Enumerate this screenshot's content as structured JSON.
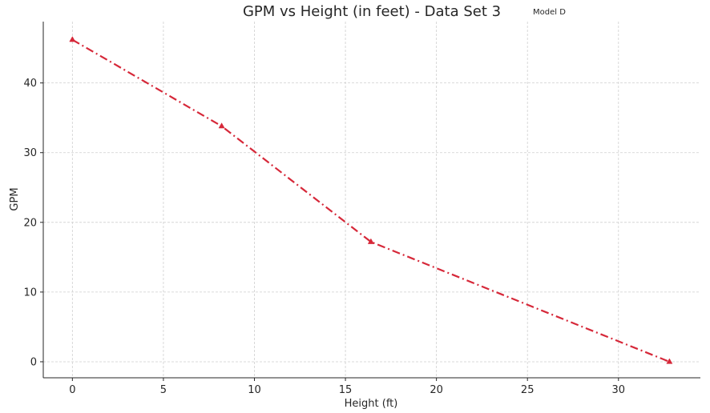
{
  "chart_data": {
    "type": "line",
    "title": "GPM vs Height (in feet) - Data Set 3",
    "subtitle": "Model D",
    "xlabel": "Height (ft)",
    "ylabel": "GPM",
    "xlim": [
      -1.6,
      34.5
    ],
    "ylim": [
      -2.3,
      48.8
    ],
    "xticks": [
      0,
      5,
      10,
      15,
      20,
      25,
      30
    ],
    "yticks": [
      0,
      10,
      20,
      30,
      40
    ],
    "grid": true,
    "line_style": "dash-dot",
    "marker": "triangle",
    "color": "#d62839",
    "series": [
      {
        "x": [
          0,
          8.2,
          16.4,
          32.8
        ],
        "y": [
          46.2,
          33.8,
          17.2,
          0
        ]
      }
    ]
  }
}
